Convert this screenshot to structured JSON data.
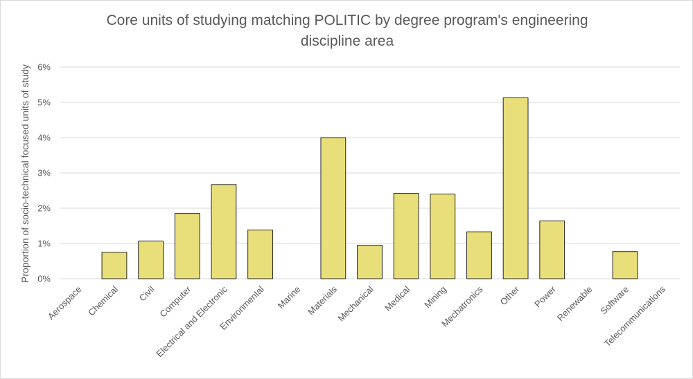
{
  "chart_data": {
    "type": "bar",
    "title_line1": "Core units of studying matching POLITIC by degree program's engineering",
    "title_line2": "discipline area",
    "xlabel": "",
    "ylabel": "Proportion of socio-technical focused units of study",
    "categories": [
      "Aerospace",
      "Chemical",
      "Civil",
      "Computer",
      "Electrical and Electronic",
      "Environmental",
      "Marine",
      "Materials",
      "Mechanical",
      "Medical",
      "Mining",
      "Mechatronics",
      "Other",
      "Power",
      "Renewable",
      "Software",
      "Telecommunications"
    ],
    "values": [
      0,
      0.75,
      1.07,
      1.85,
      2.67,
      1.38,
      0,
      4.0,
      0.95,
      2.42,
      2.4,
      1.33,
      5.13,
      1.64,
      0,
      0.77,
      0
    ],
    "ylim": [
      0,
      6
    ],
    "yticks": [
      "0%",
      "1%",
      "2%",
      "3%",
      "4%",
      "5%",
      "6%"
    ],
    "grid": true,
    "bar_color": "#e8df7a",
    "bar_edge_color": "#262626",
    "grid_color": "#d9d9d9",
    "text_color": "#595959"
  }
}
